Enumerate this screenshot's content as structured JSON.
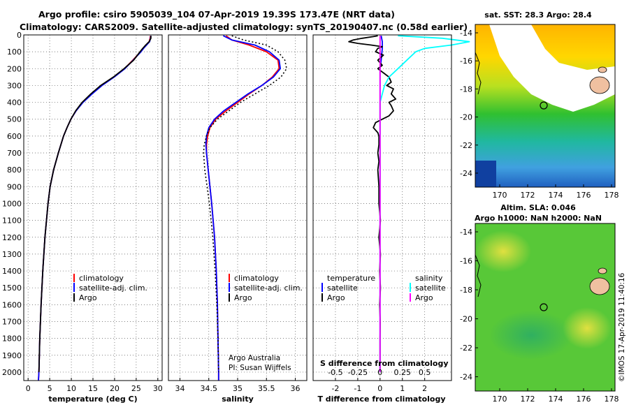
{
  "header": {
    "line1": "Argo profile: csiro 5905039_104 07-Apr-2019 19.39S 173.47E (NRT data)",
    "line2": "Climatology: CARS2009. Satellite-adjusted climatology: synTS_20190407.nc (0.58d earlier)"
  },
  "credit": {
    "line1": "Argo Australia",
    "line2": "PI: Susan Wijffels",
    "stamp": "©IMOS 17-Apr-2019 11:40:16"
  },
  "colors": {
    "climatology": "#ff0000",
    "satellite": "#0000ff",
    "argo": "#000000",
    "satellite_s": "#00ffff",
    "argo_s": "#ff00ff"
  },
  "depth_axis": {
    "ticks": [
      0,
      100,
      200,
      300,
      400,
      500,
      600,
      700,
      800,
      900,
      1000,
      1100,
      1200,
      1300,
      1400,
      1500,
      1600,
      1700,
      1800,
      1900,
      2000
    ],
    "range": [
      0,
      2050
    ]
  },
  "legend": {
    "climatology": "climatology",
    "satellite_adj": "satellite-adj. clim.",
    "argo": "Argo",
    "temperature": "temperature",
    "salinity": "salinity",
    "satellite": "satellite"
  },
  "maps": {
    "sst": {
      "title": "sat. SST: 28.3 Argo: 28.4",
      "lat_ticks": [
        "-14",
        "-16",
        "-18",
        "-20",
        "-22",
        "-24"
      ],
      "lon_ticks": [
        "170",
        "172",
        "174",
        "176",
        "178"
      ]
    },
    "sla": {
      "title1": "Altim. SLA: 0.046",
      "title2": "Argo h1000: NaN h2000: NaN",
      "lat_ticks": [
        "-14",
        "-16",
        "-18",
        "-20",
        "-22",
        "-24"
      ],
      "lon_ticks": [
        "170",
        "172",
        "174",
        "176",
        "178"
      ]
    }
  },
  "chart_data": [
    {
      "type": "line",
      "title": "",
      "xlabel": "temperature (deg C)",
      "ylabel": "",
      "xlim": [
        -1,
        31
      ],
      "ylim": [
        2050,
        0
      ],
      "x_ticks": [
        0,
        5,
        10,
        15,
        20,
        25,
        30
      ],
      "x_tick_labels": [
        "0",
        "5",
        "10",
        "15",
        "20",
        "25",
        "30"
      ],
      "series": [
        {
          "name": "climatology",
          "color": "#ff0000",
          "dash": "",
          "depth": [
            5,
            20,
            40,
            60,
            80,
            100,
            150,
            200,
            250,
            300,
            350,
            400,
            450,
            500,
            550,
            600,
            700,
            800,
            900,
            1000,
            1200,
            1400,
            1600,
            1800,
            2000,
            2050
          ],
          "values": [
            28.3,
            28.2,
            28.0,
            27.3,
            26.6,
            26.0,
            24.2,
            22.3,
            19.8,
            17.0,
            14.7,
            12.6,
            11.1,
            9.9,
            9.0,
            8.2,
            7.0,
            5.9,
            5.1,
            4.6,
            3.9,
            3.4,
            3.0,
            2.7,
            2.5,
            2.4
          ]
        },
        {
          "name": "satellite-adj. clim.",
          "color": "#0000ff",
          "dash": "",
          "depth": [
            5,
            20,
            40,
            60,
            80,
            100,
            150,
            200,
            250,
            300,
            350,
            400,
            450,
            500,
            550,
            600,
            700,
            800,
            900,
            1000,
            1200,
            1400,
            1600,
            1800,
            2000,
            2050
          ],
          "values": [
            28.4,
            28.3,
            28.1,
            27.4,
            26.7,
            26.1,
            24.3,
            22.4,
            19.9,
            17.1,
            14.8,
            12.7,
            11.1,
            9.9,
            9.0,
            8.2,
            7.0,
            5.9,
            5.1,
            4.6,
            3.9,
            3.4,
            3.0,
            2.7,
            2.5,
            2.4
          ]
        },
        {
          "name": "Argo",
          "color": "#000000",
          "dash": "",
          "depth": [
            5,
            20,
            40,
            60,
            80,
            100,
            150,
            200,
            250,
            300,
            350,
            400,
            450,
            500,
            550,
            600,
            700,
            800,
            900,
            1000,
            1200,
            1400,
            1600,
            1800,
            2000
          ],
          "values": [
            28.4,
            28.4,
            28.0,
            27.2,
            26.5,
            25.9,
            24.4,
            22.2,
            19.7,
            16.8,
            14.5,
            12.5,
            11.0,
            9.9,
            9.0,
            8.2,
            7.0,
            5.9,
            5.1,
            4.6,
            3.9,
            3.4,
            3.0,
            2.7,
            2.5
          ]
        }
      ]
    },
    {
      "type": "line",
      "title": "",
      "xlabel": "salinity",
      "ylabel": "",
      "xlim": [
        33.8,
        36.2
      ],
      "ylim": [
        2050,
        0
      ],
      "x_ticks": [
        34,
        34.5,
        35,
        35.5,
        36
      ],
      "x_tick_labels": [
        "34",
        "34.5",
        "35",
        "35.5",
        "36"
      ],
      "series": [
        {
          "name": "climatology",
          "color": "#ff0000",
          "dash": "",
          "depth": [
            5,
            30,
            60,
            100,
            150,
            200,
            250,
            300,
            350,
            400,
            450,
            500,
            550,
            600,
            650,
            700,
            800,
            900,
            1000,
            1200,
            1400,
            1600,
            1800,
            2000,
            2050
          ],
          "values": [
            34.8,
            34.9,
            35.2,
            35.5,
            35.7,
            35.72,
            35.6,
            35.42,
            35.2,
            35.0,
            34.8,
            34.62,
            34.52,
            34.48,
            34.46,
            34.46,
            34.49,
            34.52,
            34.55,
            34.6,
            34.63,
            34.65,
            34.66,
            34.67,
            34.67
          ]
        },
        {
          "name": "satellite-adj. clim.",
          "color": "#0000ff",
          "dash": "",
          "depth": [
            5,
            30,
            60,
            100,
            150,
            200,
            250,
            300,
            350,
            400,
            450,
            500,
            550,
            600,
            650,
            700,
            800,
            900,
            1000,
            1200,
            1400,
            1600,
            1800,
            2000,
            2050
          ],
          "values": [
            34.75,
            34.9,
            35.3,
            35.55,
            35.72,
            35.74,
            35.62,
            35.42,
            35.18,
            34.97,
            34.76,
            34.6,
            34.5,
            34.46,
            34.45,
            34.46,
            34.49,
            34.52,
            34.55,
            34.6,
            34.63,
            34.65,
            34.66,
            34.67,
            34.67
          ]
        },
        {
          "name": "Argo",
          "color": "#000000",
          "dash": "2,3",
          "depth": [
            5,
            30,
            60,
            100,
            150,
            200,
            250,
            300,
            350,
            400,
            450,
            500,
            550,
            600,
            650,
            700,
            800,
            900,
            1000,
            1200,
            1400,
            1600,
            1800,
            2000
          ],
          "values": [
            34.9,
            35.1,
            35.5,
            35.7,
            35.82,
            35.85,
            35.75,
            35.55,
            35.3,
            35.05,
            34.85,
            34.65,
            34.52,
            34.46,
            34.42,
            34.41,
            34.43,
            34.47,
            34.51,
            34.57,
            34.61,
            34.64,
            34.66,
            34.67
          ]
        }
      ]
    },
    {
      "type": "line",
      "title": "",
      "xlabel": "T difference from climatology",
      "x_label_top": "S difference from climatology",
      "ylabel": "",
      "xlim": [
        -3,
        3.2
      ],
      "ylim": [
        2050,
        0
      ],
      "x_ticks": [
        -2,
        -1,
        0,
        1,
        2
      ],
      "x_tick_labels": [
        "-2",
        "-1",
        "0",
        "1",
        "2"
      ],
      "x_ticks_top": [
        -0.5,
        -0.25,
        0,
        0.25,
        0.5
      ],
      "x_tick_labels_top": [
        "-0.5",
        "-0.25",
        "0",
        "0.25",
        "0.5"
      ],
      "series": [
        {
          "name": "temperature satellite",
          "color": "#0000ff",
          "dash": "",
          "depth": [
            5,
            40,
            80,
            150,
            200,
            300,
            400,
            500,
            600,
            700,
            800,
            1000,
            1200,
            1500,
            1800,
            2000
          ],
          "values": [
            0.05,
            0.1,
            0.1,
            0.05,
            0.0,
            0.0,
            0.0,
            0.0,
            0.0,
            0.0,
            0.0,
            0.0,
            0.0,
            0.0,
            0.0,
            0.0
          ]
        },
        {
          "name": "temperature Argo",
          "color": "#000000",
          "dash": "",
          "depth": [
            5,
            10,
            20,
            30,
            40,
            50,
            60,
            70,
            80,
            100,
            120,
            150,
            180,
            200,
            230,
            250,
            280,
            300,
            320,
            350,
            380,
            400,
            420,
            450,
            480,
            500,
            520,
            550,
            580,
            600,
            650,
            700,
            750,
            800,
            900,
            1000,
            1100,
            1200,
            1300,
            1400,
            1500,
            1600,
            1700,
            1800,
            1900,
            2000
          ],
          "values": [
            -0.1,
            -0.3,
            -0.8,
            -1.2,
            -1.4,
            -1.0,
            -0.4,
            0.1,
            -0.1,
            -0.2,
            0.15,
            -0.1,
            0.1,
            -0.1,
            0.2,
            0.4,
            0.5,
            0.3,
            0.6,
            0.5,
            0.7,
            0.4,
            0.5,
            0.6,
            0.4,
            0.1,
            -0.2,
            -0.3,
            -0.1,
            -0.05,
            -0.05,
            -0.1,
            -0.05,
            -0.1,
            -0.05,
            -0.05,
            0.02,
            -0.05,
            0.02,
            -0.02,
            0.02,
            -0.02,
            0.01,
            0.0,
            0.0,
            0.0
          ]
        },
        {
          "name": "salinity satellite",
          "color": "#00ffff",
          "dash": "",
          "depth": [
            5,
            20,
            40,
            60,
            80,
            100,
            150,
            200,
            250,
            300,
            400,
            500,
            600,
            700,
            800,
            1000,
            1200,
            1500,
            1800,
            2000
          ],
          "values": [
            0.2,
            0.7,
            1.0,
            0.8,
            0.5,
            0.4,
            0.3,
            0.2,
            0.1,
            0.05,
            0.0,
            0.0,
            0.0,
            0.0,
            0.0,
            0.0,
            0.0,
            0.0,
            0.0,
            0.0
          ]
        },
        {
          "name": "salinity Argo",
          "color": "#ff00ff",
          "dash": "",
          "depth": [
            5,
            2000
          ],
          "values": [
            0.0,
            0.0
          ]
        }
      ]
    }
  ]
}
